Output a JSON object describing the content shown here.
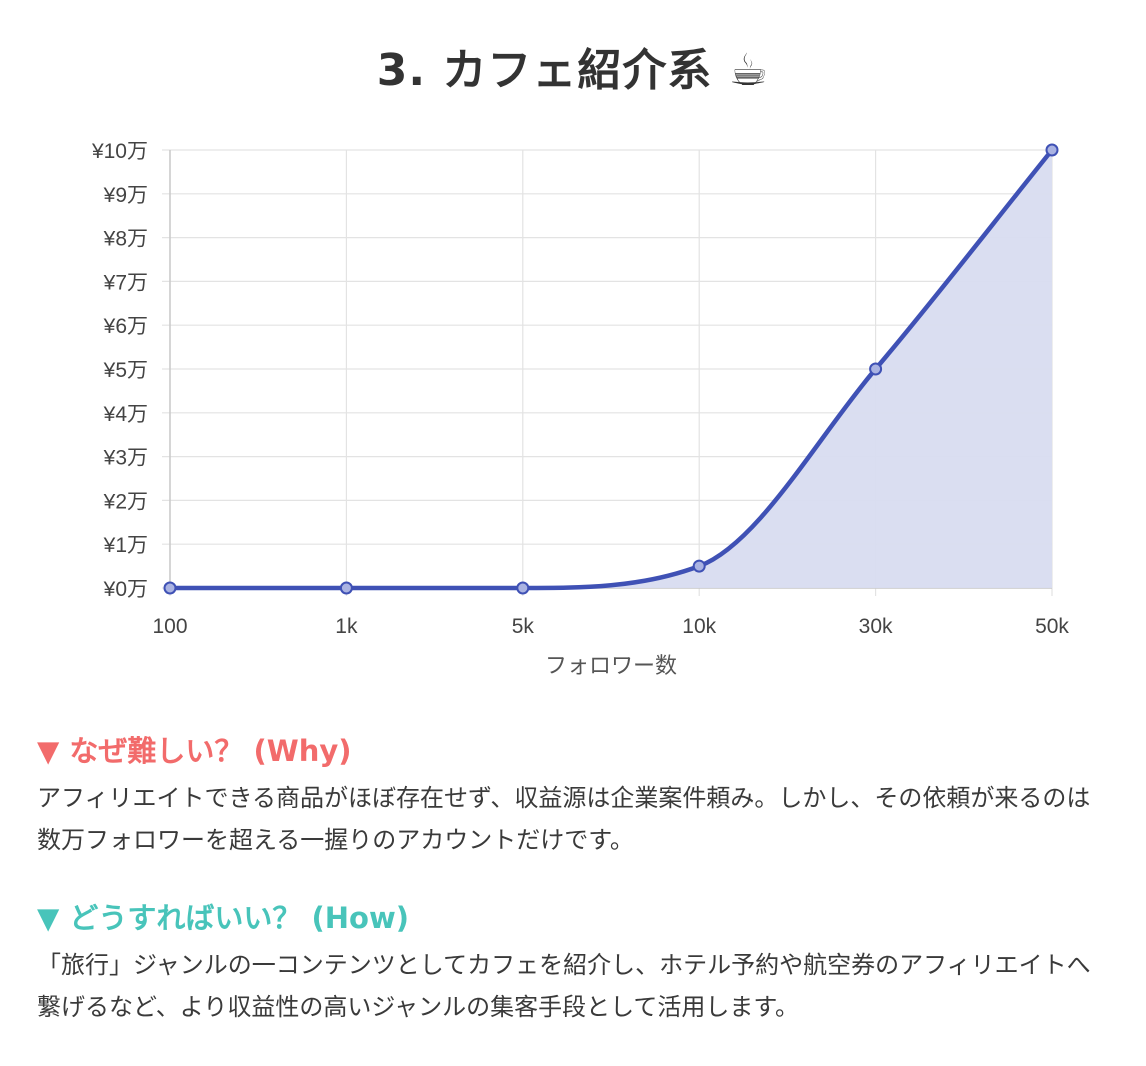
{
  "page": {
    "title": "3. カフェ紹介系",
    "title_emoji": "☕"
  },
  "chart_data": {
    "type": "line",
    "filled": true,
    "categories": [
      "100",
      "1k",
      "5k",
      "10k",
      "30k",
      "50k"
    ],
    "series": [
      {
        "values": [
          0,
          0,
          0,
          5000,
          50000,
          100000
        ]
      }
    ],
    "xlabel": "フォロワー数",
    "ylabel": "",
    "ylim": [
      0,
      100000
    ],
    "yticks": [
      {
        "value": 0,
        "label": "¥0万"
      },
      {
        "value": 10000,
        "label": "¥1万"
      },
      {
        "value": 20000,
        "label": "¥2万"
      },
      {
        "value": 30000,
        "label": "¥3万"
      },
      {
        "value": 40000,
        "label": "¥4万"
      },
      {
        "value": 50000,
        "label": "¥5万"
      },
      {
        "value": 60000,
        "label": "¥6万"
      },
      {
        "value": 70000,
        "label": "¥7万"
      },
      {
        "value": 80000,
        "label": "¥8万"
      },
      {
        "value": 90000,
        "label": "¥9万"
      },
      {
        "value": 100000,
        "label": "¥10万"
      }
    ],
    "grid": true,
    "legend": "none",
    "colors": {
      "line": "#3f51b5",
      "fill": "#d8dcf0",
      "grid": "#e3e3e3"
    }
  },
  "sections": {
    "why": {
      "heading": "▼ なぜ難しい？ (Why)",
      "body": "アフィリエイトできる商品がほぼ存在せず、収益源は企業案件頼み。しかし、その依頼が来るのは数万フォロワーを超える一握りのアカウントだけです。"
    },
    "how": {
      "heading": "▼ どうすればいい？ (How)",
      "body": "「旅行」ジャンルの一コンテンツとしてカフェを紹介し、ホテル予約や航空券のアフィリエイトへ繋げるなど、より収益性の高いジャンルの集客手段として活用します。"
    }
  }
}
